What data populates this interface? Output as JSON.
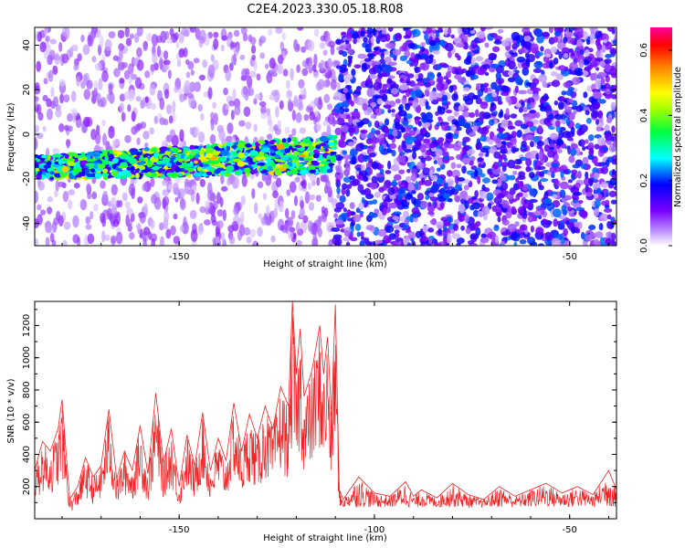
{
  "figure": {
    "title": "C2E4.2023.330.05.18.R08"
  },
  "chart_data": [
    {
      "type": "heatmap",
      "panel": "spectrogram",
      "xlabel": "Height of straight line (km)",
      "ylabel": "Frequency (Hz)",
      "xlim": [
        -187,
        -38
      ],
      "ylim": [
        -50,
        48
      ],
      "xticks": [
        -150,
        -100,
        -50
      ],
      "yticks": [
        -40,
        -20,
        0,
        20,
        40
      ],
      "colormap": "purple-blue-cyan-green-yellow-red-magenta",
      "colorbar": {
        "label": "Normalized spectral amplitude",
        "range": [
          0.0,
          0.67
        ],
        "ticks": [
          0.0,
          0.2,
          0.4,
          0.6
        ]
      },
      "features": {
        "signal_band_frequency_hz": -15,
        "signal_band_x_range": [
          -187,
          -110
        ],
        "signal_band_peak_amplitude": 0.55,
        "noise_boundary_x": -110,
        "noise_amplitude_after_boundary": 0.2,
        "noise_amplitude_before_boundary": 0.08
      },
      "colors": {
        "low": "#e0c8ff",
        "mid": "#7a00ff",
        "band": "#00ff80",
        "peak": "#ff1060"
      }
    },
    {
      "type": "line",
      "panel": "snr",
      "xlabel": "Height of straight line (km)",
      "ylabel": "SNR (10 * v/v)",
      "xlim": [
        -187,
        -38
      ],
      "ylim": [
        0,
        1350
      ],
      "xticks": [
        -150,
        -100,
        -50
      ],
      "yticks": [
        200,
        400,
        600,
        800,
        1000,
        1200
      ],
      "line_color": "#ee2222",
      "series": [
        {
          "name": "",
          "x": [
            -187,
            -185,
            -183,
            -181,
            -180,
            -179,
            -178,
            -176,
            -174,
            -172,
            -170,
            -168,
            -166,
            -164,
            -162,
            -160,
            -158,
            -156,
            -154,
            -152,
            -150,
            -148,
            -146,
            -144,
            -142,
            -140,
            -138,
            -136,
            -134,
            -132,
            -130,
            -128,
            -126,
            -124,
            -122,
            -121,
            -120,
            -119,
            -118,
            -116,
            -114,
            -113,
            -112,
            -111,
            -110,
            -109,
            -108,
            -104,
            -100,
            -96,
            -92,
            -90,
            -88,
            -84,
            -80,
            -76,
            -72,
            -68,
            -64,
            -60,
            -56,
            -52,
            -48,
            -44,
            -40,
            -38
          ],
          "y": [
            300,
            480,
            420,
            560,
            740,
            420,
            120,
            200,
            380,
            260,
            330,
            680,
            250,
            420,
            300,
            580,
            280,
            780,
            350,
            560,
            200,
            520,
            330,
            660,
            300,
            500,
            360,
            720,
            420,
            650,
            500,
            700,
            560,
            820,
            700,
            1350,
            900,
            1180,
            760,
            920,
            1200,
            900,
            1130,
            640,
            1330,
            180,
            120,
            260,
            160,
            140,
            230,
            140,
            180,
            130,
            220,
            150,
            120,
            200,
            140,
            180,
            220,
            160,
            200,
            150,
            300,
            180
          ]
        }
      ]
    }
  ]
}
